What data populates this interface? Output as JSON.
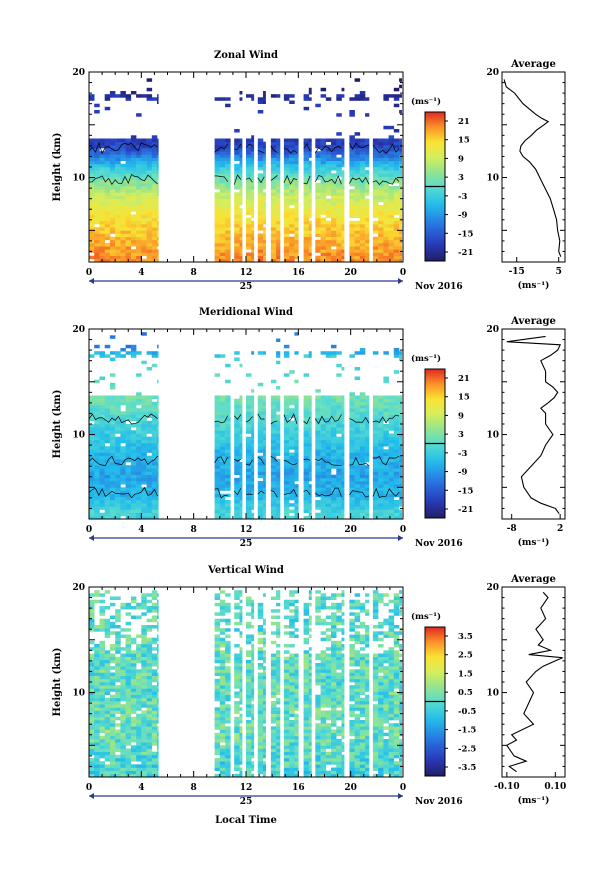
{
  "x_axis": {
    "ticks": [
      "0",
      "4",
      "8",
      "12",
      "16",
      "20",
      "0"
    ],
    "day_label": "25",
    "month_label": "Nov 2016",
    "xlabel": "Local Time"
  },
  "panels": [
    {
      "title": "Zonal Wind",
      "ylabel": "Height (km)",
      "y_ticks": [
        "20",
        "10"
      ],
      "colorbar_unit": "(ms⁻¹)",
      "colorbar_ticks": [
        "21",
        "15",
        "9",
        "3",
        "-3",
        "-9",
        "-15",
        "-21"
      ],
      "avg_title": "Average",
      "avg_y_ticks": [
        "20",
        "10"
      ],
      "avg_x_ticks": [
        "-15",
        "5"
      ],
      "avg_unit": "(ms⁻¹)"
    },
    {
      "title": "Meridional Wind",
      "ylabel": "Height (km)",
      "y_ticks": [
        "20",
        "10"
      ],
      "colorbar_unit": "(ms⁻¹)",
      "colorbar_ticks": [
        "21",
        "15",
        "9",
        "3",
        "-3",
        "-9",
        "-15",
        "-21"
      ],
      "avg_title": "Average",
      "avg_y_ticks": [
        "20",
        "10"
      ],
      "avg_x_ticks": [
        "-8",
        "2"
      ],
      "avg_unit": "(ms⁻¹)"
    },
    {
      "title": "Vertical Wind",
      "ylabel": "Height (km)",
      "y_ticks": [
        "20",
        "10"
      ],
      "colorbar_unit": "(ms⁻¹)",
      "colorbar_ticks": [
        "3.5",
        "2.5",
        "1.5",
        "0.5",
        "-0.5",
        "-1.5",
        "-2.5",
        "-3.5"
      ],
      "avg_title": "Average",
      "avg_y_ticks": [
        "20",
        "10"
      ],
      "avg_x_ticks": [
        "-0.10",
        "0.10"
      ],
      "avg_unit": "(ms⁻¹)"
    }
  ],
  "chart_data": [
    {
      "type": "heatmap",
      "title": "Zonal Wind",
      "ylabel": "Height (km)",
      "xlabel": "",
      "xlim": [
        0,
        24
      ],
      "ylim": [
        2,
        20
      ],
      "color_range": [
        -24,
        24
      ],
      "data_time_blocks": [
        [
          0,
          5.3
        ],
        [
          9.6,
          10.8
        ],
        [
          11.1,
          11.7
        ],
        [
          12.0,
          12.6
        ],
        [
          12.9,
          13.5
        ],
        [
          13.9,
          14.6
        ],
        [
          14.9,
          16.0
        ],
        [
          16.4,
          17.0
        ],
        [
          17.3,
          19.5
        ],
        [
          19.9,
          21.4
        ],
        [
          21.7,
          23.9
        ]
      ],
      "profile": [
        {
          "h": 2.5,
          "v": 19
        },
        {
          "h": 4,
          "v": 17
        },
        {
          "h": 6,
          "v": 14
        },
        {
          "h": 8,
          "v": 9
        },
        {
          "h": 9.5,
          "v": 3
        },
        {
          "h": 10.5,
          "v": -2
        },
        {
          "h": 11.5,
          "v": -9
        },
        {
          "h": 12.5,
          "v": -16
        },
        {
          "h": 13,
          "v": -18
        },
        {
          "h": 17.5,
          "v": -20
        },
        {
          "h": 18.3,
          "v": -24
        }
      ],
      "average": {
        "xlim": [
          -22,
          8
        ],
        "points": [
          {
            "h": 2.5,
            "v": 6
          },
          {
            "h": 3,
            "v": 5
          },
          {
            "h": 4,
            "v": 5.5
          },
          {
            "h": 5,
            "v": 4.5
          },
          {
            "h": 6,
            "v": 4
          },
          {
            "h": 7,
            "v": 2.5
          },
          {
            "h": 8,
            "v": 1
          },
          {
            "h": 9,
            "v": -1.5
          },
          {
            "h": 10,
            "v": -4
          },
          {
            "h": 10.8,
            "v": -6
          },
          {
            "h": 11.5,
            "v": -9
          },
          {
            "h": 12,
            "v": -12
          },
          {
            "h": 12.5,
            "v": -13.5
          },
          {
            "h": 13,
            "v": -13
          },
          {
            "h": 13.5,
            "v": -11
          },
          {
            "h": 14,
            "v": -8
          },
          {
            "h": 14.5,
            "v": -5.5
          },
          {
            "h": 15,
            "v": -2
          },
          {
            "h": 15.3,
            "v": 0
          },
          {
            "h": 15.6,
            "v": -3
          },
          {
            "h": 16,
            "v": -6
          },
          {
            "h": 17,
            "v": -12
          },
          {
            "h": 18,
            "v": -16
          },
          {
            "h": 18.6,
            "v": -20
          },
          {
            "h": 19.3,
            "v": -21
          }
        ]
      }
    },
    {
      "type": "heatmap",
      "title": "Meridional Wind",
      "ylabel": "Height (km)",
      "xlabel": "",
      "xlim": [
        0,
        24
      ],
      "ylim": [
        2,
        20
      ],
      "color_range": [
        -24,
        24
      ],
      "data_time_blocks": [
        [
          0,
          5.3
        ],
        [
          9.6,
          10.8
        ],
        [
          11.1,
          11.7
        ],
        [
          12.0,
          12.6
        ],
        [
          12.9,
          13.5
        ],
        [
          13.9,
          14.6
        ],
        [
          14.9,
          16.0
        ],
        [
          16.4,
          17.0
        ],
        [
          17.3,
          19.5
        ],
        [
          19.9,
          21.4
        ],
        [
          21.7,
          23.9
        ]
      ],
      "profile": [
        {
          "h": 2.5,
          "v": -2
        },
        {
          "h": 4,
          "v": -6
        },
        {
          "h": 6,
          "v": -8
        },
        {
          "h": 8,
          "v": -6
        },
        {
          "h": 10,
          "v": -3
        },
        {
          "h": 12,
          "v": 0
        },
        {
          "h": 13.5,
          "v": 2
        },
        {
          "h": 17,
          "v": -2
        },
        {
          "h": 18.3,
          "v": -12
        }
      ],
      "average": {
        "xlim": [
          -10,
          3
        ],
        "points": [
          {
            "h": 2.5,
            "v": 1.8
          },
          {
            "h": 3,
            "v": 1
          },
          {
            "h": 3.5,
            "v": -2
          },
          {
            "h": 4,
            "v": -4
          },
          {
            "h": 5,
            "v": -5.5
          },
          {
            "h": 6,
            "v": -6
          },
          {
            "h": 7,
            "v": -4
          },
          {
            "h": 8,
            "v": -2
          },
          {
            "h": 9,
            "v": -1
          },
          {
            "h": 10,
            "v": 0.5
          },
          {
            "h": 11,
            "v": -1
          },
          {
            "h": 12,
            "v": -1
          },
          {
            "h": 12.5,
            "v": -2
          },
          {
            "h": 13,
            "v": -0.5
          },
          {
            "h": 13.5,
            "v": 0.8
          },
          {
            "h": 14,
            "v": 1.5
          },
          {
            "h": 14.5,
            "v": 0.5
          },
          {
            "h": 15,
            "v": -1
          },
          {
            "h": 16,
            "v": -1
          },
          {
            "h": 17,
            "v": -2
          },
          {
            "h": 17.5,
            "v": 0
          },
          {
            "h": 18,
            "v": 1.5
          },
          {
            "h": 18.5,
            "v": 2
          },
          {
            "h": 18.8,
            "v": -9
          },
          {
            "h": 19.3,
            "v": -1
          }
        ]
      }
    },
    {
      "type": "heatmap",
      "title": "Vertical Wind",
      "ylabel": "Height (km)",
      "xlabel": "Local Time",
      "xlim": [
        0,
        24
      ],
      "ylim": [
        2,
        20
      ],
      "color_range": [
        -4,
        4
      ],
      "data_time_blocks": [
        [
          0,
          5.3
        ],
        [
          9.6,
          10.8
        ],
        [
          11.1,
          11.7
        ],
        [
          12.0,
          12.6
        ],
        [
          12.9,
          13.5
        ],
        [
          13.9,
          14.6
        ],
        [
          14.9,
          16.0
        ],
        [
          16.4,
          17.0
        ],
        [
          17.3,
          19.5
        ],
        [
          19.9,
          21.4
        ],
        [
          21.7,
          23.9
        ]
      ],
      "profile": [
        {
          "h": 2.5,
          "v": -0.3
        },
        {
          "h": 6,
          "v": 0.2
        },
        {
          "h": 10,
          "v": 0
        },
        {
          "h": 12.5,
          "v": 0.1
        },
        {
          "h": 16,
          "v": 0
        },
        {
          "h": 19.5,
          "v": 0
        }
      ],
      "average": {
        "xlim": [
          -0.12,
          0.14
        ],
        "points": [
          {
            "h": 2.5,
            "v": -0.06
          },
          {
            "h": 3,
            "v": -0.09
          },
          {
            "h": 3.5,
            "v": -0.02
          },
          {
            "h": 4,
            "v": -0.07
          },
          {
            "h": 5,
            "v": -0.1
          },
          {
            "h": 5.5,
            "v": -0.06
          },
          {
            "h": 6,
            "v": -0.08
          },
          {
            "h": 7,
            "v": 0.01
          },
          {
            "h": 8,
            "v": -0.03
          },
          {
            "h": 9,
            "v": -0.01
          },
          {
            "h": 10,
            "v": 0.01
          },
          {
            "h": 11,
            "v": -0.02
          },
          {
            "h": 12,
            "v": 0.02
          },
          {
            "h": 12.5,
            "v": 0.05
          },
          {
            "h": 13,
            "v": 0.1
          },
          {
            "h": 13.3,
            "v": 0.13
          },
          {
            "h": 13.6,
            "v": -0.01
          },
          {
            "h": 14,
            "v": 0.08
          },
          {
            "h": 14.5,
            "v": 0.03
          },
          {
            "h": 15,
            "v": 0.05
          },
          {
            "h": 16,
            "v": 0.02
          },
          {
            "h": 17,
            "v": 0.06
          },
          {
            "h": 18,
            "v": 0.04
          },
          {
            "h": 19,
            "v": 0.07
          },
          {
            "h": 19.5,
            "v": 0.05
          }
        ]
      }
    }
  ]
}
